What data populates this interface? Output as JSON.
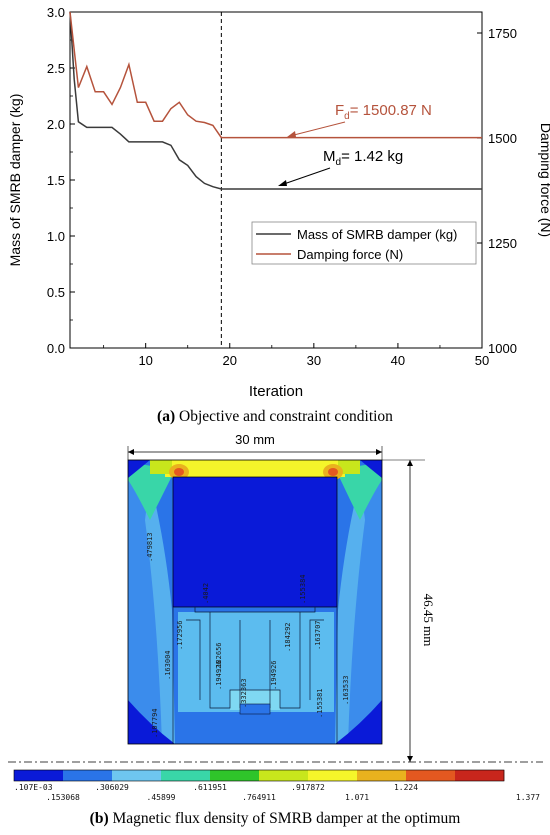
{
  "chart_data": {
    "type": "line",
    "x": [
      1,
      2,
      3,
      4,
      5,
      6,
      7,
      8,
      9,
      10,
      11,
      12,
      13,
      14,
      15,
      16,
      17,
      18,
      19,
      20,
      25,
      30,
      35,
      40,
      45,
      50
    ],
    "xlabel": "Iteration",
    "ylabel": "Mass of SMRB damper (kg)",
    "y2label": "Damping force (N)",
    "xlim": [
      1,
      50
    ],
    "xticks": [
      10,
      20,
      30,
      40,
      50
    ],
    "ylim": [
      0,
      3.0
    ],
    "yticks": [
      "0.0",
      "0.5",
      "1.0",
      "1.5",
      "2.0",
      "2.5",
      "3.0"
    ],
    "y2lim": [
      1000,
      1800
    ],
    "y2ticks": [
      "1000",
      "1250",
      "1500",
      "1750"
    ],
    "divider_x": 19,
    "series": [
      {
        "name": "Mass of SMRB damper (kg)",
        "axis": "left",
        "color": "#3a3a3a",
        "x": [
          1,
          1.5,
          2,
          3,
          4,
          5,
          6,
          7,
          8,
          9,
          10,
          11,
          12,
          13,
          14,
          15,
          16,
          17,
          18,
          19,
          20,
          25,
          30,
          35,
          40,
          45,
          50
        ],
        "values": [
          3.0,
          2.4,
          2.02,
          1.97,
          1.97,
          1.97,
          1.97,
          1.91,
          1.84,
          1.84,
          1.84,
          1.84,
          1.84,
          1.81,
          1.68,
          1.63,
          1.53,
          1.47,
          1.44,
          1.42,
          1.42,
          1.42,
          1.42,
          1.42,
          1.42,
          1.42,
          1.42
        ]
      },
      {
        "name": "Damping force (N)",
        "axis": "right",
        "color": "#b5533c",
        "x": [
          1,
          2,
          3,
          4,
          5,
          6,
          7,
          8,
          9,
          10,
          11,
          12,
          13,
          14,
          15,
          16,
          17,
          18,
          19,
          20,
          25,
          30,
          35,
          40,
          45,
          50
        ],
        "values": [
          1800,
          1620,
          1670,
          1610,
          1610,
          1580,
          1620,
          1675,
          1585,
          1585,
          1540,
          1540,
          1570,
          1585,
          1555,
          1540,
          1537,
          1530,
          1500.87,
          1500.87,
          1500.87,
          1500.87,
          1500.87,
          1500.87,
          1500.87,
          1500.87
        ]
      }
    ],
    "annotations": [
      {
        "label_main": "F",
        "label_sub": "d",
        "label_rest": "= 1500.87 N",
        "color": "#b5533c"
      },
      {
        "label_main": "M",
        "label_sub": "d",
        "label_rest": "= 1.42 kg",
        "color": "#000000"
      }
    ],
    "legend_position": "middle-right"
  },
  "caption_a": {
    "tag": "(a)",
    "text": " Objective and constraint condition"
  },
  "caption_b": {
    "tag": "(b)",
    "text": " Magnetic flux density of SMRB damper at the optimum"
  },
  "fem": {
    "width_dim": "30 mm",
    "height_dim": "46.45 mm",
    "contour_labels": [
      ".479813",
      ".172956",
      ".163004",
      ".107794",
      ".182656",
      ".194926",
      ".194926",
      ".184292",
      ".163707",
      ".155381",
      ".163533",
      ".332363",
      ".4042",
      ".155384",
      ".163553"
    ],
    "colorbar": {
      "colors": [
        "#0a1ad8",
        "#2a74e8",
        "#6ec6f0",
        "#39d6a8",
        "#2fc42a",
        "#c8e61c",
        "#f5f52a",
        "#e9b21e",
        "#e35820",
        "#c8261c"
      ],
      "top_labels": [
        ".107E-03",
        ".306029",
        ".611951",
        ".917872",
        ".224"
      ],
      "top_labels_full": [
        ".107E-03",
        ".306029",
        ".611951",
        ".917872",
        "1.224"
      ],
      "bottom_labels": [
        ".153068",
        ".45899",
        ".764911",
        "1.071",
        "1.377"
      ]
    }
  }
}
